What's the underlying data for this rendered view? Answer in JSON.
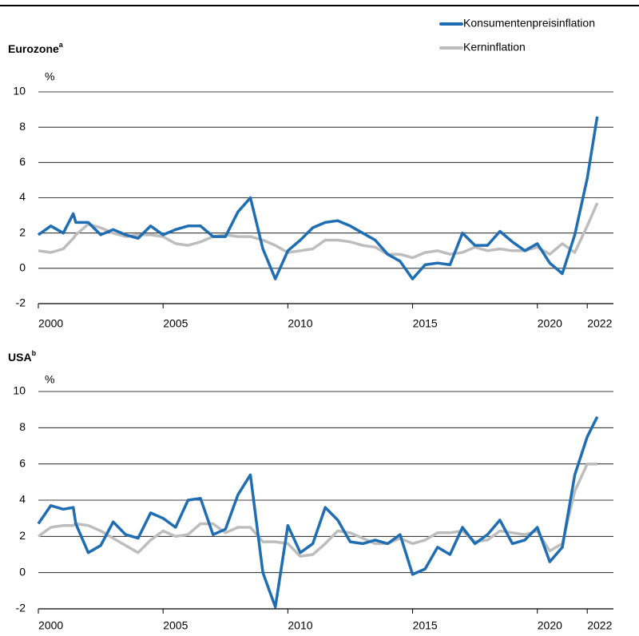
{
  "chart_data": [
    {
      "type": "line",
      "title": "Eurozone",
      "title_superscript": "a",
      "ylabel": "%",
      "xlim": [
        2000,
        2023.05
      ],
      "xticks": [
        2000,
        2005,
        2010,
        2015,
        2020,
        2022
      ],
      "ylim": [
        -2,
        10
      ],
      "yticks": [
        -2,
        0,
        2,
        4,
        6,
        8,
        10
      ],
      "grid": true,
      "legend": "top-right",
      "x": [
        2000,
        2000.5,
        2001,
        2001.4,
        2001.5,
        2002,
        2002.5,
        2003,
        2003.5,
        2004,
        2004.5,
        2005,
        2005.5,
        2006,
        2006.5,
        2007,
        2007.5,
        2008,
        2008.5,
        2009,
        2009.5,
        2010,
        2010.5,
        2011,
        2011.5,
        2012,
        2012.5,
        2013,
        2013.5,
        2014,
        2014.5,
        2015,
        2015.5,
        2016,
        2016.5,
        2017,
        2017.5,
        2018,
        2018.5,
        2019,
        2019.5,
        2020,
        2020.5,
        2021,
        2021.5,
        2022,
        2022.4
      ],
      "series": [
        {
          "name": "Konsumentenpreisinflation",
          "color": "#1f6db3",
          "values": [
            1.9,
            2.4,
            2.0,
            3.1,
            2.6,
            2.6,
            1.9,
            2.2,
            1.9,
            1.7,
            2.4,
            1.9,
            2.2,
            2.4,
            2.4,
            1.8,
            1.8,
            3.2,
            4.0,
            1.1,
            -0.6,
            1.0,
            1.6,
            2.3,
            2.6,
            2.7,
            2.4,
            2.0,
            1.6,
            0.8,
            0.4,
            -0.6,
            0.2,
            0.3,
            0.2,
            2.0,
            1.3,
            1.3,
            2.1,
            1.5,
            1.0,
            1.4,
            0.3,
            -0.3,
            1.9,
            5.1,
            8.6
          ]
        },
        {
          "name": "Kerninflation",
          "color": "#bdbdbd",
          "values": [
            1.0,
            0.9,
            1.1,
            1.7,
            1.9,
            2.5,
            2.3,
            2.0,
            1.8,
            1.9,
            1.9,
            1.8,
            1.4,
            1.3,
            1.5,
            1.8,
            1.9,
            1.8,
            1.8,
            1.6,
            1.3,
            0.9,
            1.0,
            1.1,
            1.6,
            1.6,
            1.5,
            1.3,
            1.2,
            0.8,
            0.8,
            0.6,
            0.9,
            1.0,
            0.8,
            0.9,
            1.2,
            1.0,
            1.1,
            1.0,
            1.0,
            1.2,
            0.8,
            1.4,
            0.9,
            2.4,
            3.7
          ]
        }
      ]
    },
    {
      "type": "line",
      "title": "USA",
      "title_superscript": "b",
      "ylabel": "%",
      "xlim": [
        2000,
        2023.05
      ],
      "xticks": [
        2000,
        2005,
        2010,
        2015,
        2020,
        2022
      ],
      "ylim": [
        -2,
        10
      ],
      "yticks": [
        -2,
        0,
        2,
        4,
        6,
        8,
        10
      ],
      "grid": true,
      "x": [
        2000,
        2000.5,
        2001,
        2001.4,
        2001.5,
        2002,
        2002.5,
        2003,
        2003.5,
        2004,
        2004.5,
        2005,
        2005.5,
        2006,
        2006.5,
        2007,
        2007.5,
        2008,
        2008.5,
        2009,
        2009.5,
        2010,
        2010.5,
        2011,
        2011.5,
        2012,
        2012.5,
        2013,
        2013.5,
        2014,
        2014.5,
        2015,
        2015.5,
        2016,
        2016.5,
        2017,
        2017.5,
        2018,
        2018.5,
        2019,
        2019.5,
        2020,
        2020.5,
        2021,
        2021.5,
        2022,
        2022.4
      ],
      "series": [
        {
          "color": "#1f6db3",
          "values": [
            2.7,
            3.7,
            3.5,
            3.6,
            2.7,
            1.1,
            1.5,
            2.8,
            2.1,
            1.9,
            3.3,
            3.0,
            2.5,
            4.0,
            4.1,
            2.1,
            2.4,
            4.3,
            5.4,
            0.0,
            -1.9,
            2.6,
            1.1,
            1.6,
            3.6,
            2.9,
            1.7,
            1.6,
            1.8,
            1.6,
            2.1,
            -0.1,
            0.2,
            1.4,
            1.0,
            2.5,
            1.6,
            2.1,
            2.9,
            1.6,
            1.8,
            2.5,
            0.6,
            1.4,
            5.4,
            7.5,
            8.6
          ]
        },
        {
          "color": "#bdbdbd",
          "values": [
            2.0,
            2.5,
            2.6,
            2.6,
            2.7,
            2.6,
            2.3,
            1.9,
            1.5,
            1.1,
            1.8,
            2.3,
            2.0,
            2.1,
            2.7,
            2.7,
            2.2,
            2.5,
            2.5,
            1.7,
            1.7,
            1.6,
            0.9,
            1.0,
            1.6,
            2.3,
            2.2,
            1.9,
            1.6,
            1.6,
            1.9,
            1.6,
            1.8,
            2.2,
            2.2,
            2.3,
            1.7,
            1.8,
            2.3,
            2.2,
            2.1,
            2.3,
            1.2,
            1.6,
            4.5,
            6.0,
            6.0
          ]
        }
      ]
    }
  ]
}
